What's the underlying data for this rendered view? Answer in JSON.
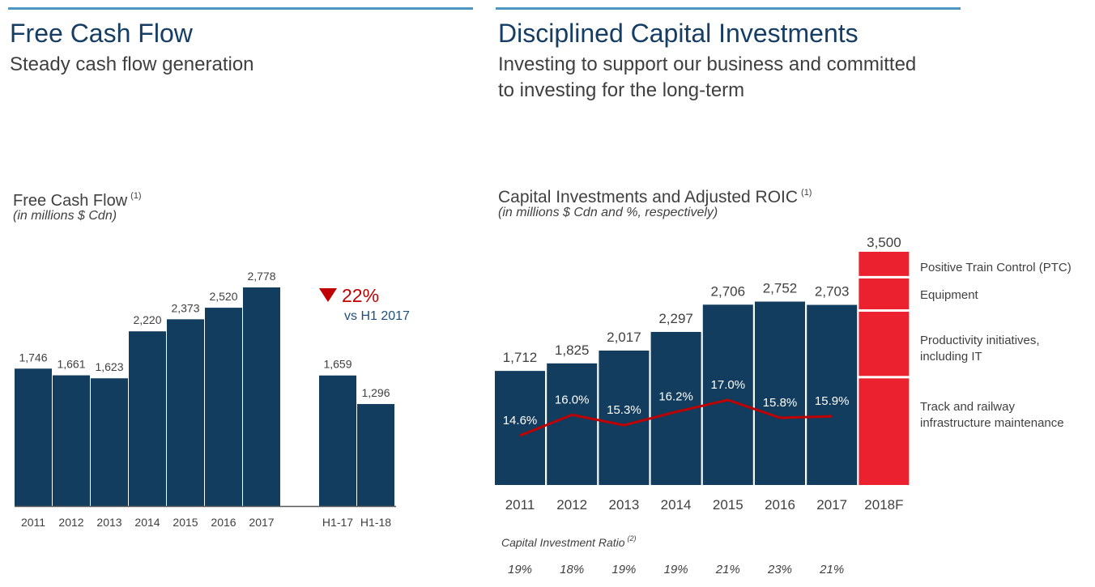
{
  "colors": {
    "rule": "#4F97C3",
    "heading": "#163E64",
    "navy_bar": "#133D5E",
    "forecast_red": "#EC2130",
    "roic_line": "#C00000",
    "change_red": "#C00000",
    "change_text": "#1F4E79",
    "baseline": "#595959"
  },
  "left_panel": {
    "title": "Free Cash Flow",
    "subtitle": "Steady cash flow generation"
  },
  "right_panel": {
    "title": "Disciplined Capital Investments",
    "subtitle_line1": "Investing to support our business and committed",
    "subtitle_line2": "to investing for the long-term"
  },
  "chart_data": [
    {
      "type": "bar",
      "title": "Free Cash Flow",
      "title_footnote": "(1)",
      "subtitle": "(in millions $ Cdn)",
      "xlabel": "",
      "ylabel": "",
      "grid": false,
      "categories": [
        "2011",
        "2012",
        "2013",
        "2014",
        "2015",
        "2016",
        "2017",
        "H1-17",
        "H1-18"
      ],
      "values": [
        1746,
        1661,
        1623,
        2220,
        2373,
        2520,
        2778,
        1659,
        1296
      ],
      "value_labels": [
        "1,746",
        "1,661",
        "1,623",
        "2,220",
        "2,373",
        "2,520",
        "2,778",
        "1,659",
        "1,296"
      ],
      "annotation": {
        "direction": "down",
        "icon": "down-triangle-icon",
        "change": "22%",
        "comparison": "vs H1 2017"
      }
    },
    {
      "type": "bar",
      "title": "Capital Investments and Adjusted ROIC",
      "title_footnote": "(1)",
      "subtitle": "(in millions $ Cdn and %, respectively)",
      "xlabel": "",
      "ylabel": "",
      "grid": false,
      "categories": [
        "2011",
        "2012",
        "2013",
        "2014",
        "2015",
        "2016",
        "2017",
        "2018F"
      ],
      "series": [
        {
          "name": "Capital Investments",
          "type": "bar",
          "values": [
            1712,
            1825,
            2017,
            2297,
            2706,
            2752,
            2703,
            3500
          ],
          "value_labels": [
            "1,712",
            "1,825",
            "2,017",
            "2,297",
            "2,706",
            "2,752",
            "2,703",
            "3,500"
          ]
        },
        {
          "name": "Adjusted ROIC",
          "type": "line",
          "unit": "%",
          "values": [
            14.6,
            16.0,
            15.3,
            16.2,
            17.0,
            15.8,
            15.9,
            null
          ],
          "value_labels": [
            "14.6%",
            "16.0%",
            "15.3%",
            "16.2%",
            "17.0%",
            "15.8%",
            "15.9%",
            null
          ]
        }
      ],
      "forecast_breakdown": {
        "category": "2018F",
        "segments": [
          {
            "label_lines": [
              "Track and railway",
              "infrastructure maintenance"
            ],
            "value": 1600
          },
          {
            "label_lines": [
              "Productivity initiatives,",
              "including IT"
            ],
            "value": 1000
          },
          {
            "label_lines": [
              "Equipment"
            ],
            "value": 500
          },
          {
            "label_lines": [
              "Positive Train Control (PTC)"
            ],
            "value": 400
          }
        ]
      },
      "capital_investment_ratio": {
        "label": "Capital Investment Ratio",
        "footnote": "(2)",
        "values": [
          "19%",
          "18%",
          "19%",
          "19%",
          "21%",
          "23%",
          "21%"
        ]
      }
    }
  ]
}
